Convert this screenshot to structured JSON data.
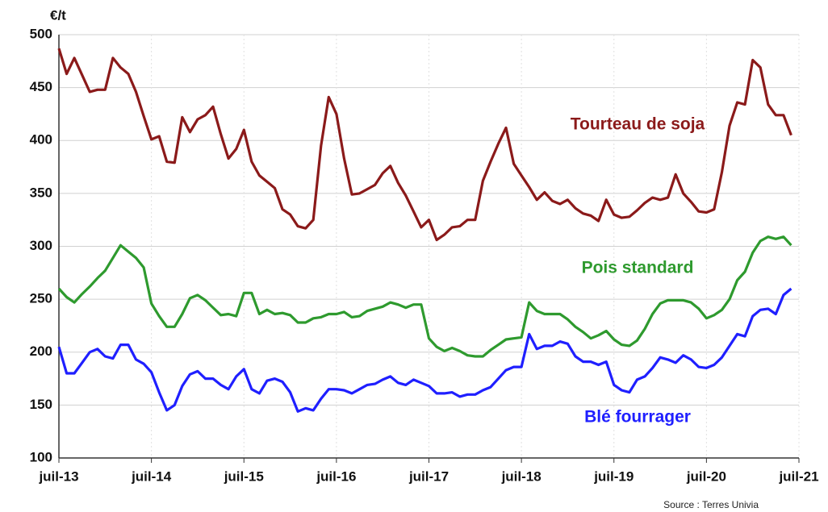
{
  "chart_data": {
    "type": "line",
    "y_label": "€/t",
    "source": "Source : Terres Univia",
    "categories": [
      "juil-13",
      null,
      null,
      null,
      null,
      null,
      null,
      null,
      null,
      null,
      null,
      null,
      "juil-14",
      null,
      null,
      null,
      null,
      null,
      null,
      null,
      null,
      null,
      null,
      null,
      "juil-15",
      null,
      null,
      null,
      null,
      null,
      null,
      null,
      null,
      null,
      null,
      null,
      "juil-16",
      null,
      null,
      null,
      null,
      null,
      null,
      null,
      null,
      null,
      null,
      null,
      "juil-17",
      null,
      null,
      null,
      null,
      null,
      null,
      null,
      null,
      null,
      null,
      null,
      "juil-18",
      null,
      null,
      null,
      null,
      null,
      null,
      null,
      null,
      null,
      null,
      null,
      "juil-19",
      null,
      null,
      null,
      null,
      null,
      null,
      null,
      null,
      null,
      null,
      null,
      "juil-20",
      null,
      null,
      null,
      null,
      null,
      null,
      null,
      null,
      null,
      null,
      null,
      "juil-21"
    ],
    "series": [
      {
        "name": "Tourteau de soja",
        "color": "#8b1a1a",
        "values": [
          487,
          463,
          478,
          462,
          446,
          448,
          448,
          478,
          469,
          463,
          446,
          423,
          401,
          404,
          380,
          379,
          422,
          408,
          420,
          424,
          432,
          406,
          383,
          392,
          410,
          380,
          367,
          361,
          355,
          335,
          330,
          319,
          317,
          325,
          395,
          441,
          425,
          383,
          349,
          350,
          354,
          358,
          369,
          376,
          360,
          348,
          333,
          318,
          325,
          306,
          311,
          318,
          319,
          325,
          325,
          362,
          380,
          397,
          412,
          378,
          367,
          356,
          344,
          351,
          343,
          340,
          344,
          336,
          331,
          329,
          324,
          344,
          330,
          327,
          328,
          334,
          341,
          346,
          344,
          346,
          368,
          350,
          342,
          333,
          332,
          335,
          370,
          414,
          436,
          434,
          476,
          469,
          434,
          424,
          424,
          405,
          null
        ]
      },
      {
        "name": "Pois standard",
        "color": "#2e9a2e",
        "values": [
          260,
          252,
          247,
          255,
          262,
          270,
          277,
          289,
          301,
          295,
          289,
          280,
          246,
          234,
          224,
          224,
          236,
          251,
          254,
          249,
          242,
          235,
          236,
          234,
          256,
          256,
          236,
          240,
          236,
          237,
          235,
          228,
          228,
          232,
          233,
          236,
          236,
          238,
          233,
          234,
          239,
          241,
          243,
          247,
          245,
          242,
          245,
          245,
          213,
          205,
          201,
          204,
          201,
          197,
          196,
          196,
          202,
          207,
          212,
          213,
          214,
          247,
          239,
          236,
          236,
          236,
          231,
          224,
          219,
          213,
          216,
          220,
          212,
          207,
          206,
          211,
          222,
          236,
          246,
          249,
          249,
          249,
          247,
          241,
          232,
          235,
          240,
          250,
          268,
          276,
          294,
          305,
          309,
          307,
          309,
          301,
          null
        ]
      },
      {
        "name": "Blé fourrager",
        "color": "#1f1fff",
        "values": [
          205,
          180,
          180,
          190,
          200,
          203,
          196,
          194,
          207,
          207,
          193,
          189,
          181,
          162,
          145,
          150,
          168,
          179,
          182,
          175,
          175,
          169,
          165,
          177,
          184,
          165,
          161,
          173,
          175,
          172,
          162,
          144,
          147,
          145,
          156,
          165,
          165,
          164,
          161,
          165,
          169,
          170,
          174,
          177,
          171,
          169,
          174,
          171,
          168,
          161,
          161,
          162,
          158,
          160,
          160,
          164,
          167,
          175,
          183,
          186,
          186,
          217,
          203,
          206,
          206,
          210,
          208,
          196,
          191,
          191,
          188,
          191,
          169,
          164,
          162,
          174,
          177,
          185,
          195,
          193,
          190,
          197,
          193,
          186,
          185,
          188,
          195,
          206,
          217,
          215,
          234,
          240,
          241,
          236,
          254,
          260,
          null
        ]
      }
    ],
    "ylim": [
      100,
      500
    ],
    "yticks": [
      100,
      150,
      200,
      250,
      300,
      350,
      400,
      450,
      500
    ],
    "grid": true
  }
}
